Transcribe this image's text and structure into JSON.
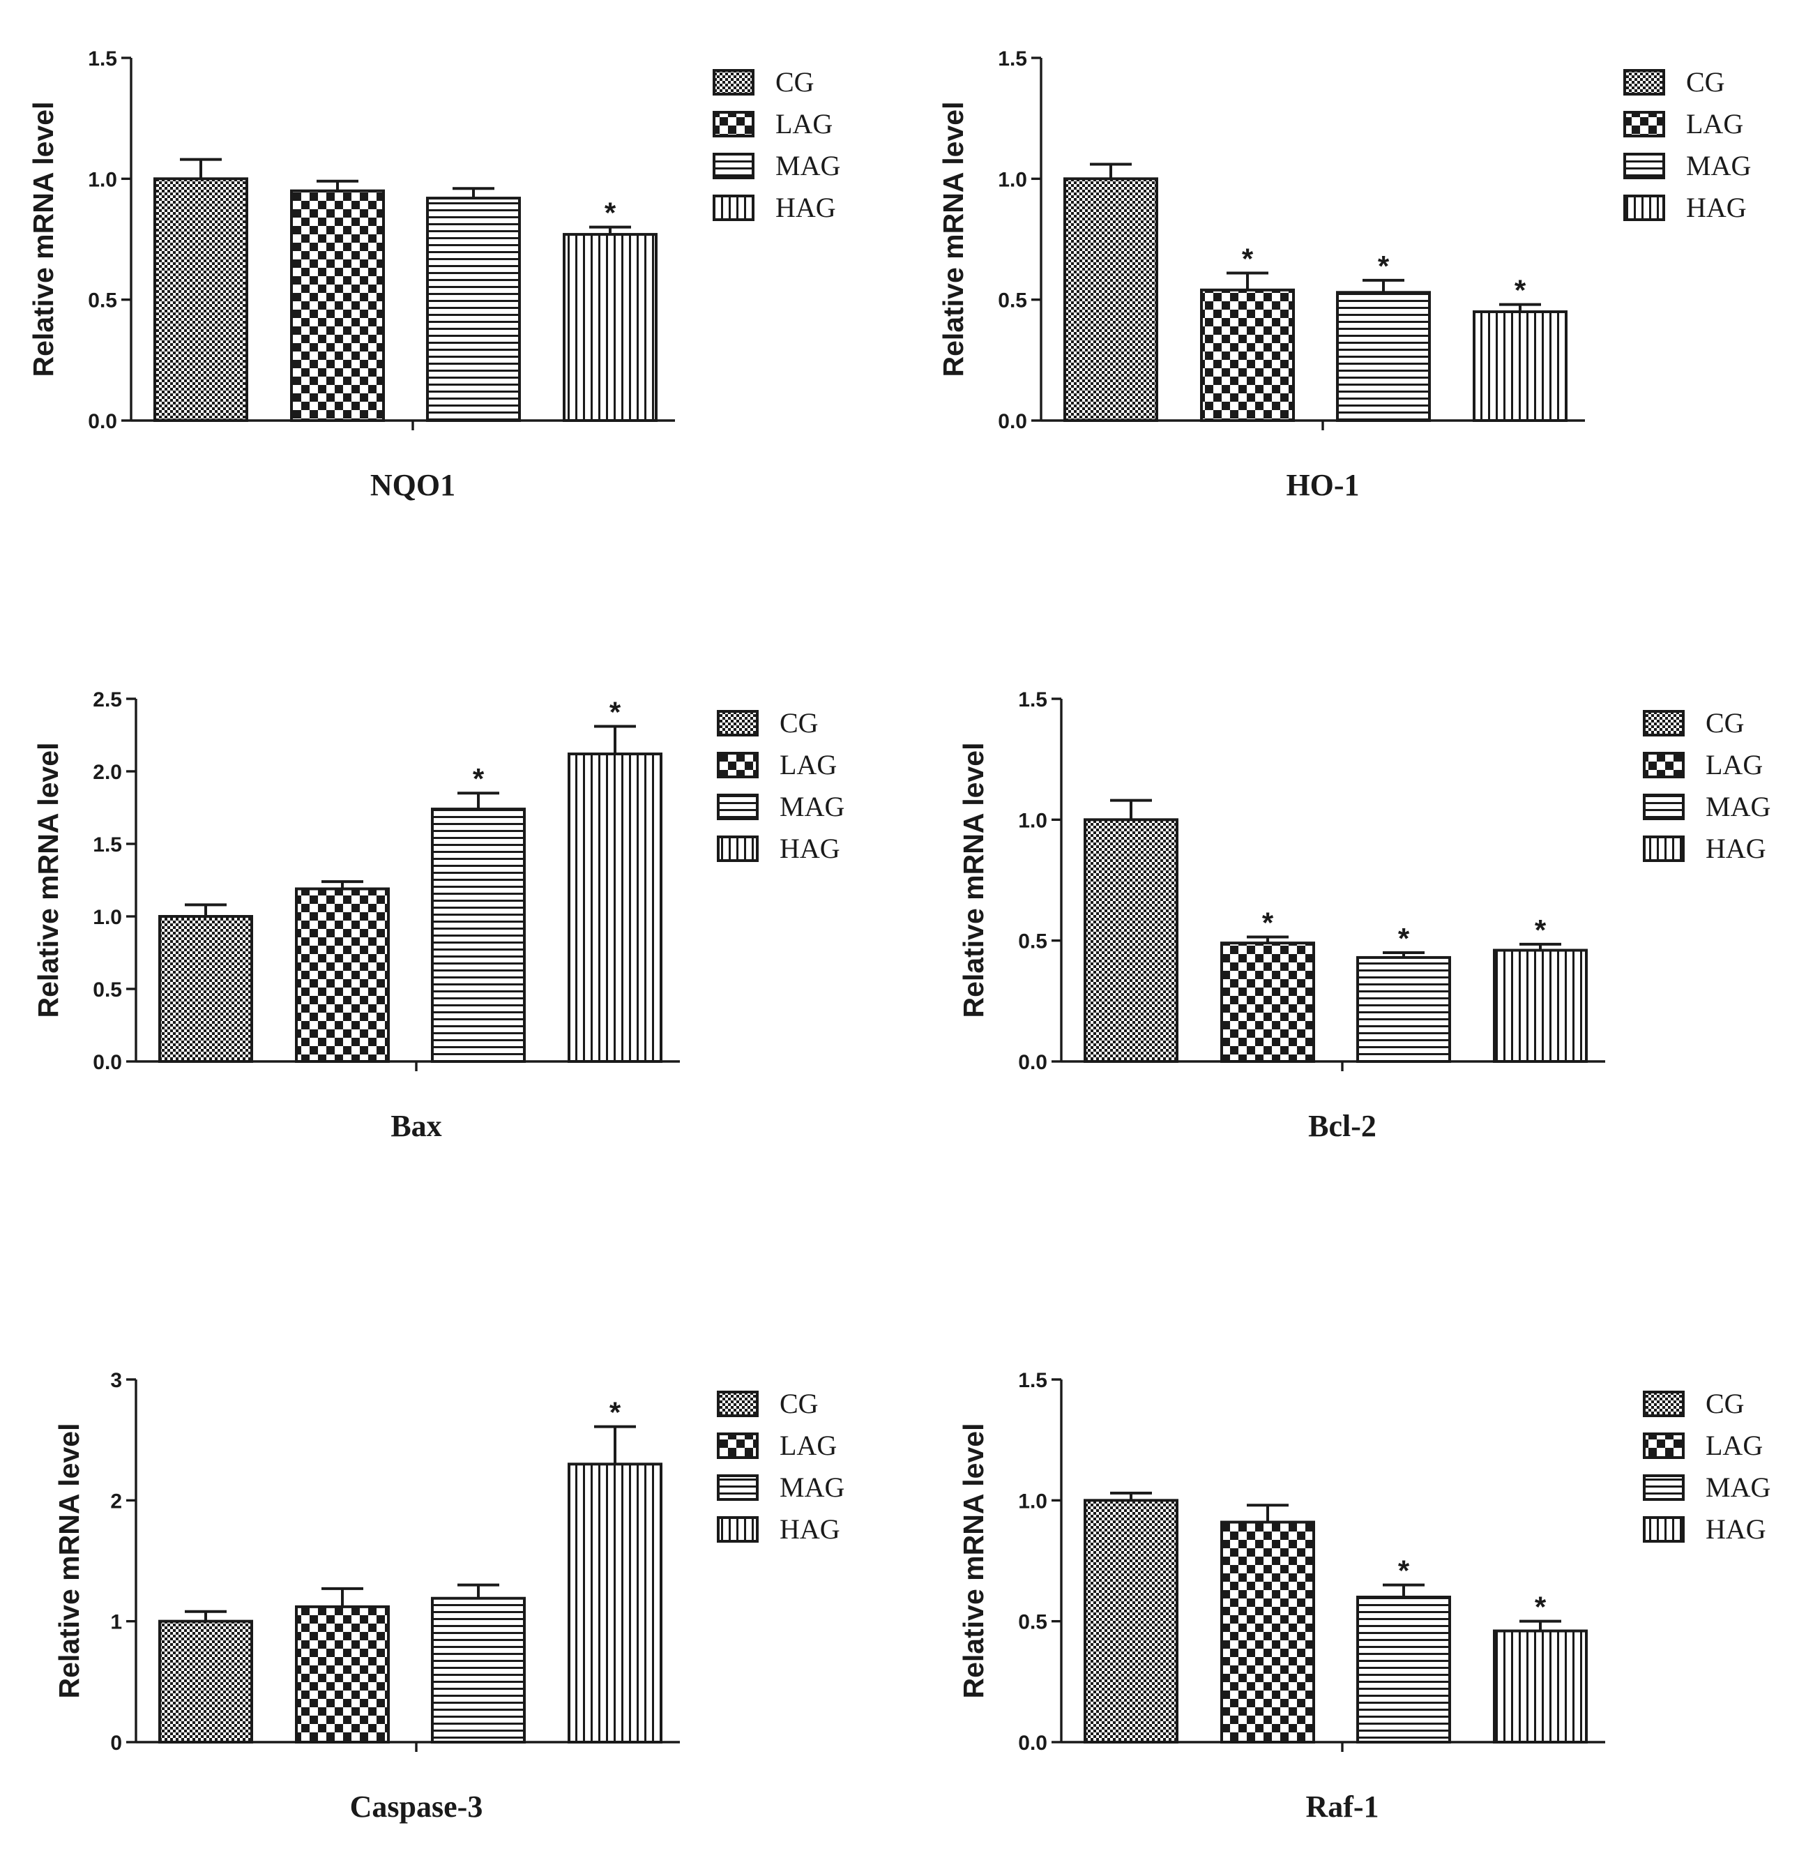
{
  "legend_labels": [
    "CG",
    "LAG",
    "MAG",
    "HAG"
  ],
  "chart_data": [
    {
      "type": "bar",
      "title": "",
      "xlabel": "NQO1",
      "ylabel": "Relative mRNA level",
      "categories": [
        "CG",
        "LAG",
        "MAG",
        "HAG"
      ],
      "values": [
        1.0,
        0.95,
        0.92,
        0.77
      ],
      "errors": [
        0.08,
        0.04,
        0.04,
        0.03
      ],
      "significant": [
        false,
        false,
        false,
        true
      ],
      "ylim": [
        0,
        1.5
      ],
      "yticks": [
        0.0,
        0.5,
        1.0,
        1.5
      ],
      "ytick_labels": [
        "0.0",
        "0.5",
        "1.0",
        "1.5"
      ],
      "legend": "top-right"
    },
    {
      "type": "bar",
      "title": "",
      "xlabel": "HO-1",
      "ylabel": "Relative mRNA level",
      "categories": [
        "CG",
        "LAG",
        "MAG",
        "HAG"
      ],
      "values": [
        1.0,
        0.54,
        0.53,
        0.45
      ],
      "errors": [
        0.06,
        0.07,
        0.05,
        0.03
      ],
      "significant": [
        false,
        true,
        true,
        true
      ],
      "ylim": [
        0,
        1.5
      ],
      "yticks": [
        0.0,
        0.5,
        1.0,
        1.5
      ],
      "ytick_labels": [
        "0.0",
        "0.5",
        "1.0",
        "1.5"
      ],
      "legend": "top-right"
    },
    {
      "type": "bar",
      "title": "",
      "xlabel": "Bax",
      "ylabel": "Relative mRNA level",
      "categories": [
        "CG",
        "LAG",
        "MAG",
        "HAG"
      ],
      "values": [
        1.0,
        1.19,
        1.74,
        2.12
      ],
      "errors": [
        0.08,
        0.05,
        0.11,
        0.19
      ],
      "significant": [
        false,
        false,
        true,
        true
      ],
      "ylim": [
        0,
        2.5
      ],
      "yticks": [
        0.0,
        0.5,
        1.0,
        1.5,
        2.0,
        2.5
      ],
      "ytick_labels": [
        "0.0",
        "0.5",
        "1.0",
        "1.5",
        "2.0",
        "2.5"
      ],
      "legend": "top-right"
    },
    {
      "type": "bar",
      "title": "",
      "xlabel": "Bcl-2",
      "ylabel": "Relative mRNA level",
      "categories": [
        "CG",
        "LAG",
        "MAG",
        "HAG"
      ],
      "values": [
        1.0,
        0.49,
        0.43,
        0.46
      ],
      "errors": [
        0.08,
        0.025,
        0.02,
        0.025
      ],
      "significant": [
        false,
        true,
        true,
        true
      ],
      "ylim": [
        0,
        1.5
      ],
      "yticks": [
        0.0,
        0.5,
        1.0,
        1.5
      ],
      "ytick_labels": [
        "0.0",
        "0.5",
        "1.0",
        "1.5"
      ],
      "legend": "top-right"
    },
    {
      "type": "bar",
      "title": "",
      "xlabel": "Caspase-3",
      "ylabel": "Relative mRNA level",
      "categories": [
        "CG",
        "LAG",
        "MAG",
        "HAG"
      ],
      "values": [
        1.0,
        1.12,
        1.19,
        2.3
      ],
      "errors": [
        0.08,
        0.15,
        0.11,
        0.31
      ],
      "significant": [
        false,
        false,
        false,
        true
      ],
      "ylim": [
        0,
        3
      ],
      "yticks": [
        0,
        1,
        2,
        3
      ],
      "ytick_labels": [
        "0",
        "1",
        "2",
        "3"
      ],
      "legend": "top-right"
    },
    {
      "type": "bar",
      "title": "",
      "xlabel": "Raf-1",
      "ylabel": "Relative mRNA level",
      "categories": [
        "CG",
        "LAG",
        "MAG",
        "HAG"
      ],
      "values": [
        1.0,
        0.91,
        0.6,
        0.46
      ],
      "errors": [
        0.03,
        0.07,
        0.05,
        0.04
      ],
      "significant": [
        false,
        false,
        true,
        true
      ],
      "ylim": [
        0,
        1.5
      ],
      "yticks": [
        0.0,
        0.5,
        1.0,
        1.5
      ],
      "ytick_labels": [
        "0.0",
        "0.5",
        "1.0",
        "1.5"
      ],
      "legend": "top-right"
    }
  ],
  "significance_marker": "*",
  "colors": {
    "ink": "#1a1a1a",
    "background": "#ffffff"
  },
  "patterns": [
    "fine-checker",
    "large-checker",
    "horizontal-lines",
    "vertical-lines"
  ]
}
